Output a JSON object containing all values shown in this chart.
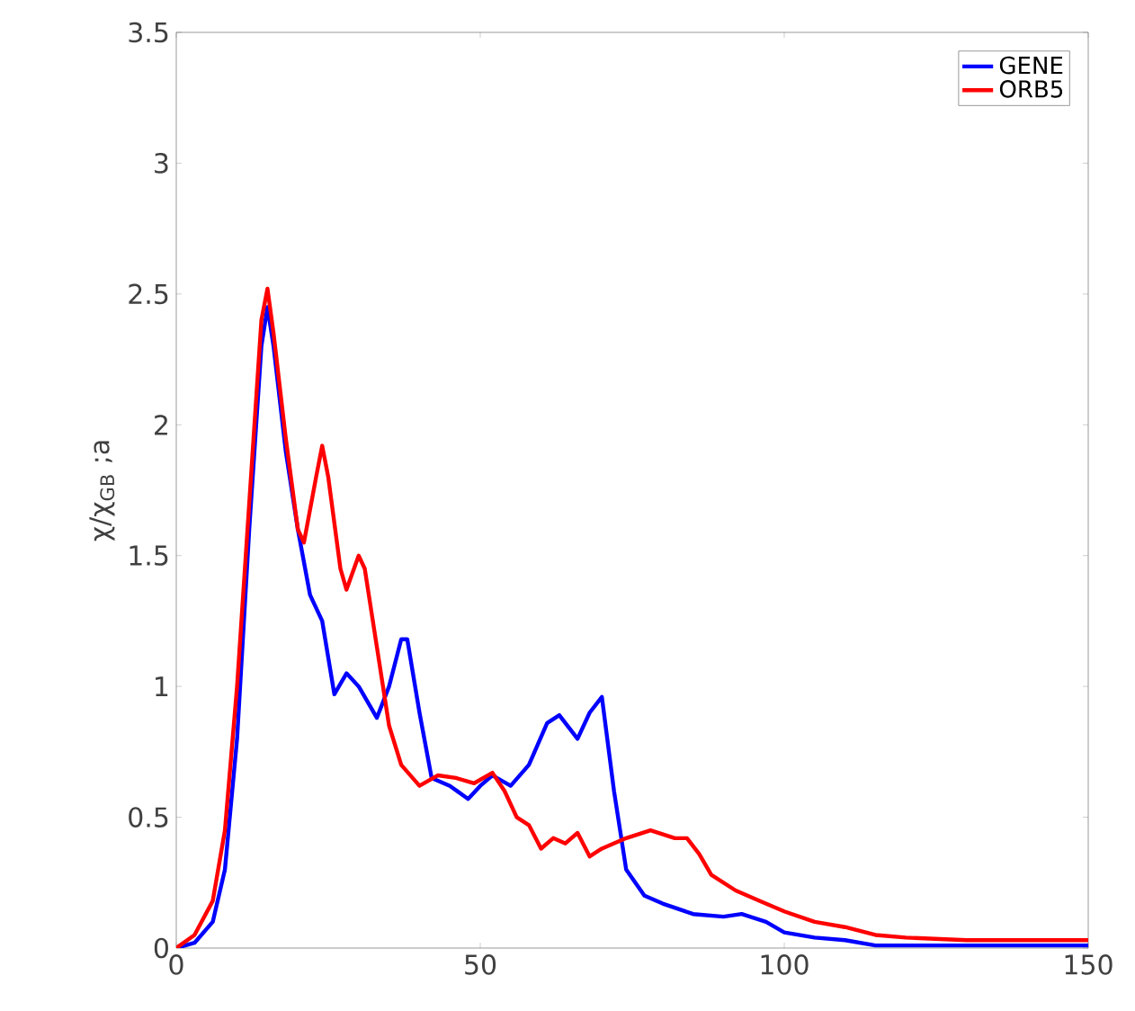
{
  "chart_data": {
    "type": "line",
    "ylabel": "χ/χ$_{GB}$ ;a",
    "xlim": [
      0,
      150
    ],
    "ylim": [
      0,
      3.5
    ],
    "xticks": [
      0,
      50,
      100,
      150
    ],
    "yticks": [
      0,
      0.5,
      1,
      1.5,
      2,
      2.5,
      3,
      3.5
    ],
    "grid": false,
    "legend": "top right",
    "marker": "none",
    "line_style": "solid",
    "series": [
      {
        "name": "GENE",
        "color": "#0000ff",
        "x": [
          0,
          3,
          6,
          8,
          10,
          12,
          14,
          15,
          16,
          18,
          20,
          22,
          24,
          26,
          28,
          30,
          33,
          35,
          37,
          38,
          40,
          42,
          45,
          48,
          50,
          52,
          55,
          58,
          61,
          63,
          66,
          68,
          70,
          72,
          74,
          77,
          80,
          85,
          90,
          93,
          97,
          100,
          105,
          110,
          115,
          125,
          150
        ],
        "values": [
          0,
          0.02,
          0.1,
          0.3,
          0.8,
          1.6,
          2.3,
          2.45,
          2.3,
          1.9,
          1.6,
          1.35,
          1.25,
          0.97,
          1.05,
          1.0,
          0.88,
          1.0,
          1.18,
          1.18,
          0.9,
          0.65,
          0.62,
          0.57,
          0.62,
          0.66,
          0.62,
          0.7,
          0.86,
          0.89,
          0.8,
          0.9,
          0.96,
          0.6,
          0.3,
          0.2,
          0.17,
          0.13,
          0.12,
          0.13,
          0.1,
          0.06,
          0.04,
          0.03,
          0.01,
          0.01,
          0.01
        ]
      },
      {
        "name": "ORB5",
        "color": "#ff0000",
        "x": [
          0,
          3,
          6,
          8,
          10,
          12,
          14,
          15,
          16,
          18,
          20,
          21,
          23,
          24,
          25,
          27,
          28,
          30,
          31,
          33,
          35,
          37,
          40,
          43,
          46,
          49,
          52,
          54,
          56,
          58,
          60,
          62,
          64,
          66,
          68,
          70,
          74,
          78,
          82,
          84,
          86,
          88,
          92,
          96,
          100,
          105,
          110,
          115,
          120,
          130,
          150
        ],
        "values": [
          0,
          0.05,
          0.18,
          0.45,
          1.0,
          1.7,
          2.4,
          2.52,
          2.35,
          1.95,
          1.6,
          1.55,
          1.8,
          1.92,
          1.8,
          1.45,
          1.37,
          1.5,
          1.45,
          1.15,
          0.85,
          0.7,
          0.62,
          0.66,
          0.65,
          0.63,
          0.67,
          0.6,
          0.5,
          0.47,
          0.38,
          0.42,
          0.4,
          0.44,
          0.35,
          0.38,
          0.42,
          0.45,
          0.42,
          0.42,
          0.36,
          0.28,
          0.22,
          0.18,
          0.14,
          0.1,
          0.08,
          0.05,
          0.04,
          0.03,
          0.03
        ]
      }
    ]
  }
}
